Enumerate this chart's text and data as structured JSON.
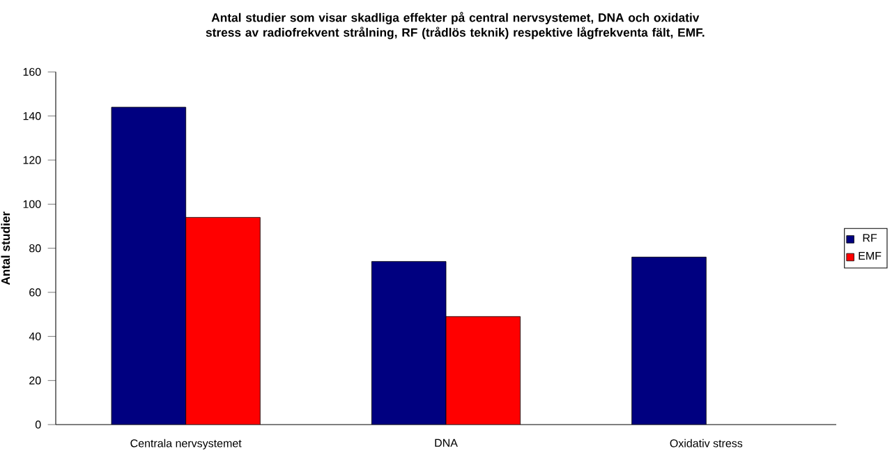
{
  "chart_data": {
    "type": "bar",
    "title": "Antal studier som visar skadliga effekter på central nervsystemet, DNA och oxidativ stress av radiofrekvent strålning, RF (trådlös teknik) respektive lågfrekventa fält, EMF.",
    "ylabel": "Antal studier",
    "categories": [
      "Centrala nervsystemet",
      "DNA",
      "Oxidativ stress"
    ],
    "series": [
      {
        "name": "RF",
        "color": "#000080",
        "values": [
          144,
          74,
          76
        ]
      },
      {
        "name": "EMF",
        "color": "#ff0000",
        "values": [
          94,
          49,
          null
        ]
      }
    ],
    "ylim": [
      0,
      160
    ],
    "yticks": [
      0,
      20,
      40,
      60,
      80,
      100,
      120,
      140,
      160
    ],
    "grid": false,
    "legend": "right"
  }
}
